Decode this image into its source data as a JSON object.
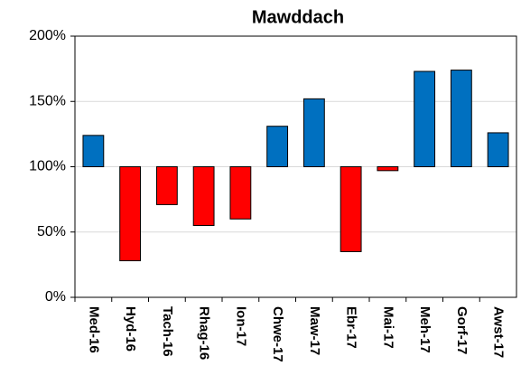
{
  "chart_data": {
    "type": "bar",
    "title": "Mawddach",
    "categories": [
      "Med-16",
      "Hyd-16",
      "Tach-16",
      "Rhag-16",
      "Ion-17",
      "Chwe-17",
      "Maw-17",
      "Ebr-17",
      "Mai-17",
      "Meh-17",
      "Gorf-17",
      "Awst-17"
    ],
    "values": [
      124,
      28,
      71,
      55,
      60,
      131,
      152,
      35,
      97,
      173,
      174,
      126
    ],
    "colors": [
      "#0070c0",
      "#ff0000",
      "#ff0000",
      "#ff0000",
      "#ff0000",
      "#0070c0",
      "#0070c0",
      "#ff0000",
      "#ff0000",
      "#0070c0",
      "#0070c0",
      "#0070c0"
    ],
    "baseline": 100,
    "ylim": [
      0,
      200
    ],
    "yticks": [
      {
        "value": 0,
        "label": "0%"
      },
      {
        "value": 50,
        "label": "50%"
      },
      {
        "value": 100,
        "label": "100%"
      },
      {
        "value": 150,
        "label": "150%"
      },
      {
        "value": 200,
        "label": "200%"
      }
    ],
    "grid": true
  }
}
